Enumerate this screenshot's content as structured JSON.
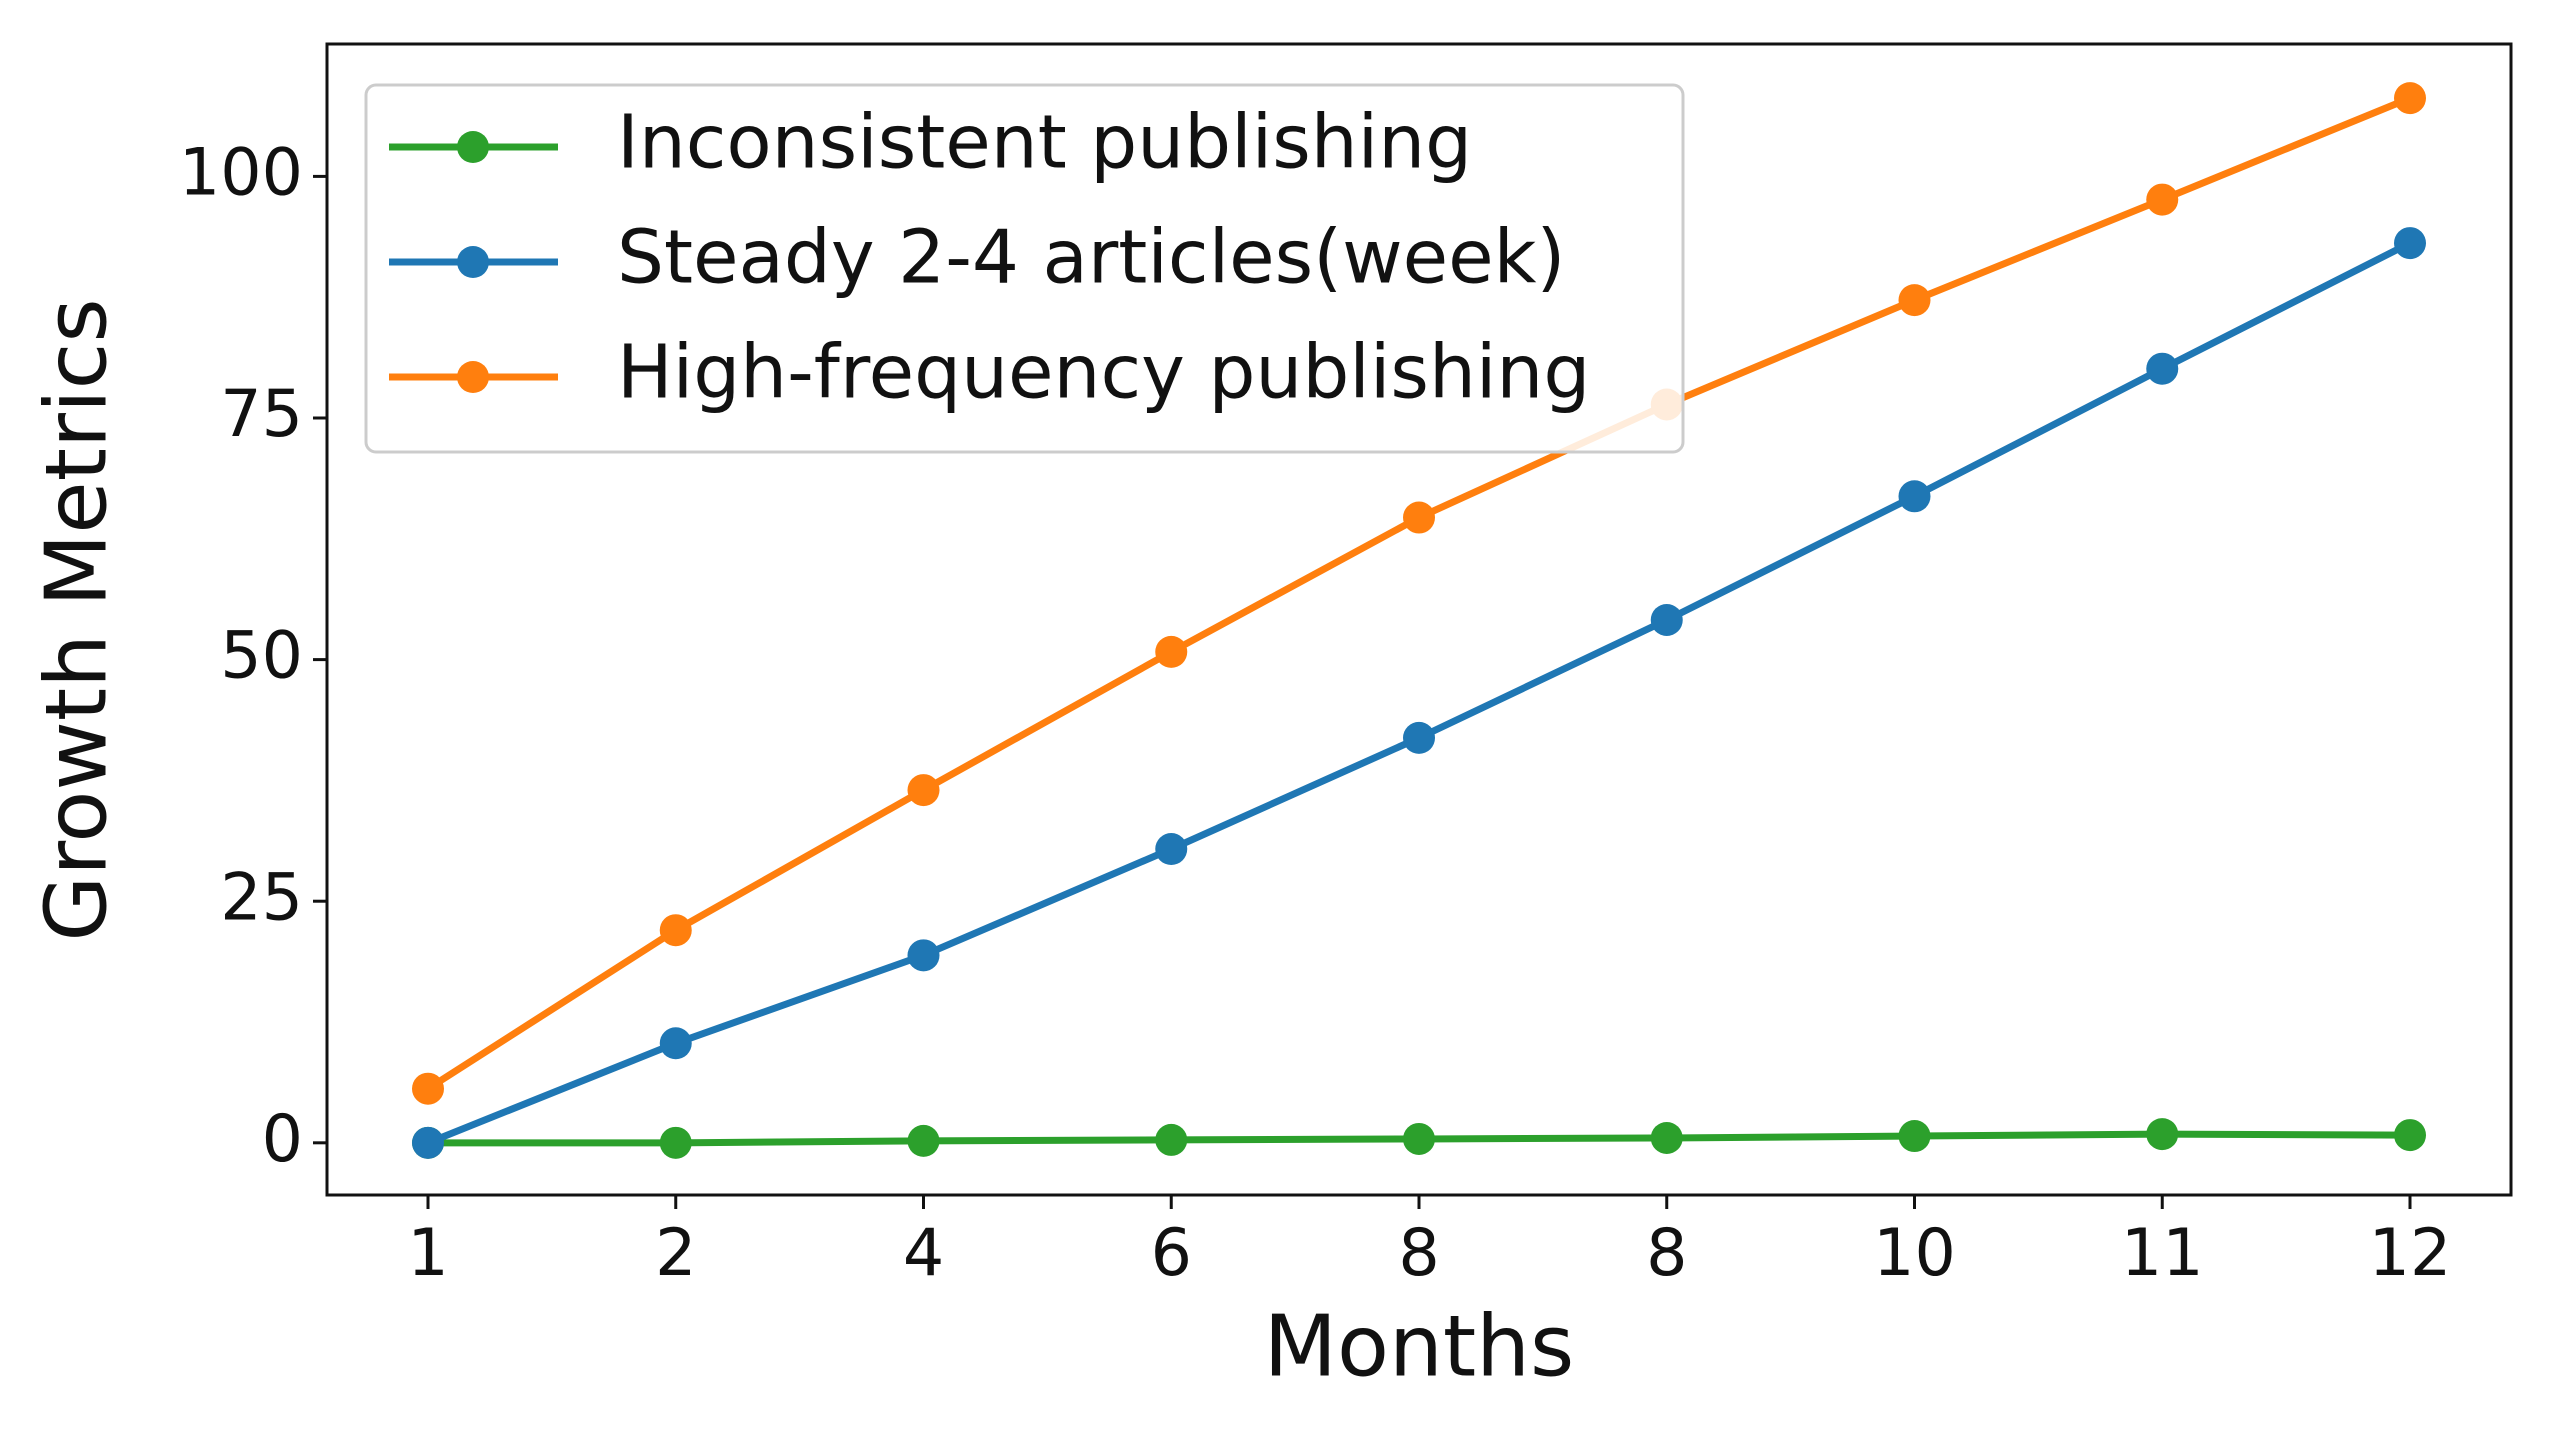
{
  "chart_data": {
    "type": "line",
    "x_label": "Months",
    "y_label": "Growth Metrics",
    "categories": [
      "1",
      "2",
      "4",
      "6",
      "8",
      "8",
      "10",
      "11",
      "12"
    ],
    "series": [
      {
        "name": "Inconsistent publishing",
        "color": "#2ca02c",
        "values": [
          0,
          0,
          0.2,
          0.3,
          0.4,
          0.5,
          0.7,
          0.9,
          0.8
        ]
      },
      {
        "name": "Steady 2-4 articles(week)",
        "color": "#1f77b4",
        "values": [
          0,
          10.3,
          19.4,
          30.4,
          41.9,
          54.1,
          66.9,
          80.1,
          93.1
        ]
      },
      {
        "name": "High-frequency publishing",
        "color": "#ff7f0e",
        "values": [
          5.6,
          22,
          36.5,
          50.8,
          64.7,
          76.4,
          87.2,
          97.6,
          108.1
        ]
      }
    ],
    "ylim": [
      -5.4,
      113.7
    ],
    "yticks": [
      0,
      25,
      50,
      75,
      100
    ],
    "grid": false,
    "legend": "upper left"
  }
}
